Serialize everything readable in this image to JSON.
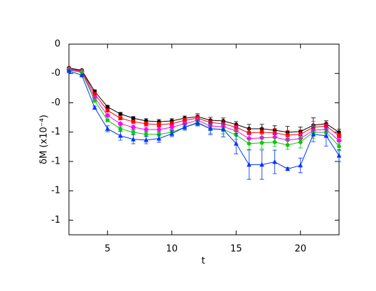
{
  "chart_data": {
    "type": "line",
    "x_label": "t",
    "y_label": "δM  (x10⁻⁴)",
    "x": [
      2,
      3,
      4,
      5,
      6,
      7,
      8,
      9,
      10,
      11,
      12,
      13,
      14,
      15,
      16,
      17,
      18,
      19,
      20,
      21,
      22,
      23
    ],
    "xlim": [
      2,
      23
    ],
    "xticks": [
      5,
      10,
      15,
      20
    ],
    "ylim": [
      -1.3,
      0
    ],
    "yticks": [
      0,
      {
        "value": -0.2,
        "label": "-0"
      },
      {
        "value": -0.4,
        "label": "-0"
      },
      {
        "value": -0.6,
        "label": "-1"
      },
      {
        "value": -0.8,
        "label": "-1"
      },
      {
        "value": -1.0,
        "label": "-1"
      },
      {
        "value": -1.2,
        "label": "-1"
      }
    ],
    "series": [
      {
        "color": "#000000",
        "marker": "circle",
        "values": [
          -0.163,
          -0.178,
          -0.322,
          -0.428,
          -0.476,
          -0.505,
          -0.524,
          -0.529,
          -0.524,
          -0.505,
          -0.495,
          -0.519,
          -0.524,
          -0.548,
          -0.577,
          -0.577,
          -0.587,
          -0.601,
          -0.596,
          -0.553,
          -0.543,
          -0.601
        ],
        "errors": [
          0.005,
          0.005,
          0.01,
          0.01,
          0.01,
          0.01,
          0.015,
          0.015,
          0.015,
          0.015,
          0.02,
          0.02,
          0.02,
          0.02,
          0.03,
          0.03,
          0.03,
          0.04,
          0.03,
          0.05,
          0.02,
          0.02
        ]
      },
      {
        "color": "#ff0000",
        "marker": "square",
        "values": [
          -0.168,
          -0.183,
          -0.341,
          -0.452,
          -0.505,
          -0.529,
          -0.543,
          -0.548,
          -0.543,
          -0.519,
          -0.505,
          -0.534,
          -0.543,
          -0.567,
          -0.606,
          -0.601,
          -0.606,
          -0.62,
          -0.615,
          -0.567,
          -0.558,
          -0.625
        ],
        "errors": [
          0.005,
          0.005,
          0.01,
          0.01,
          0.01,
          0.01,
          0.015,
          0.015,
          0.015,
          0.015,
          0.02,
          0.02,
          0.02,
          0.02,
          0.03,
          0.03,
          0.03,
          0.03,
          0.03,
          0.04,
          0.02,
          0.02
        ]
      },
      {
        "color": "#ff00ff",
        "marker": "diamond",
        "values": [
          -0.173,
          -0.188,
          -0.365,
          -0.486,
          -0.543,
          -0.567,
          -0.582,
          -0.582,
          -0.567,
          -0.543,
          -0.519,
          -0.558,
          -0.563,
          -0.591,
          -0.644,
          -0.639,
          -0.635,
          -0.654,
          -0.644,
          -0.587,
          -0.582,
          -0.659
        ],
        "errors": [
          0.005,
          0.005,
          0.01,
          0.01,
          0.01,
          0.015,
          0.015,
          0.015,
          0.015,
          0.015,
          0.02,
          0.02,
          0.02,
          0.03,
          0.03,
          0.03,
          0.03,
          0.03,
          0.03,
          0.04,
          0.03,
          0.02
        ]
      },
      {
        "color": "#00cc00",
        "marker": "circle",
        "values": [
          -0.178,
          -0.192,
          -0.385,
          -0.519,
          -0.577,
          -0.601,
          -0.615,
          -0.615,
          -0.601,
          -0.567,
          -0.534,
          -0.577,
          -0.582,
          -0.62,
          -0.678,
          -0.673,
          -0.668,
          -0.688,
          -0.668,
          -0.601,
          -0.601,
          -0.697
        ],
        "errors": [
          0.005,
          0.005,
          0.01,
          0.01,
          0.015,
          0.015,
          0.015,
          0.015,
          0.015,
          0.02,
          0.02,
          0.03,
          0.03,
          0.03,
          0.04,
          0.04,
          0.03,
          0.03,
          0.04,
          0.04,
          0.03,
          0.03
        ]
      },
      {
        "color": "#0033ff",
        "marker": "triangle",
        "values": [
          -0.183,
          -0.212,
          -0.433,
          -0.577,
          -0.625,
          -0.649,
          -0.654,
          -0.644,
          -0.611,
          -0.567,
          -0.538,
          -0.577,
          -0.582,
          -0.678,
          -0.822,
          -0.822,
          -0.803,
          -0.851,
          -0.827,
          -0.615,
          -0.625,
          -0.76
        ],
        "errors": [
          0.005,
          0.005,
          0.01,
          0.02,
          0.03,
          0.03,
          0.025,
          0.025,
          0.02,
          0.02,
          0.02,
          0.04,
          0.05,
          0.07,
          0.1,
          0.1,
          0.08,
          0.01,
          0.05,
          0.05,
          0.07,
          0.04
        ]
      }
    ]
  }
}
